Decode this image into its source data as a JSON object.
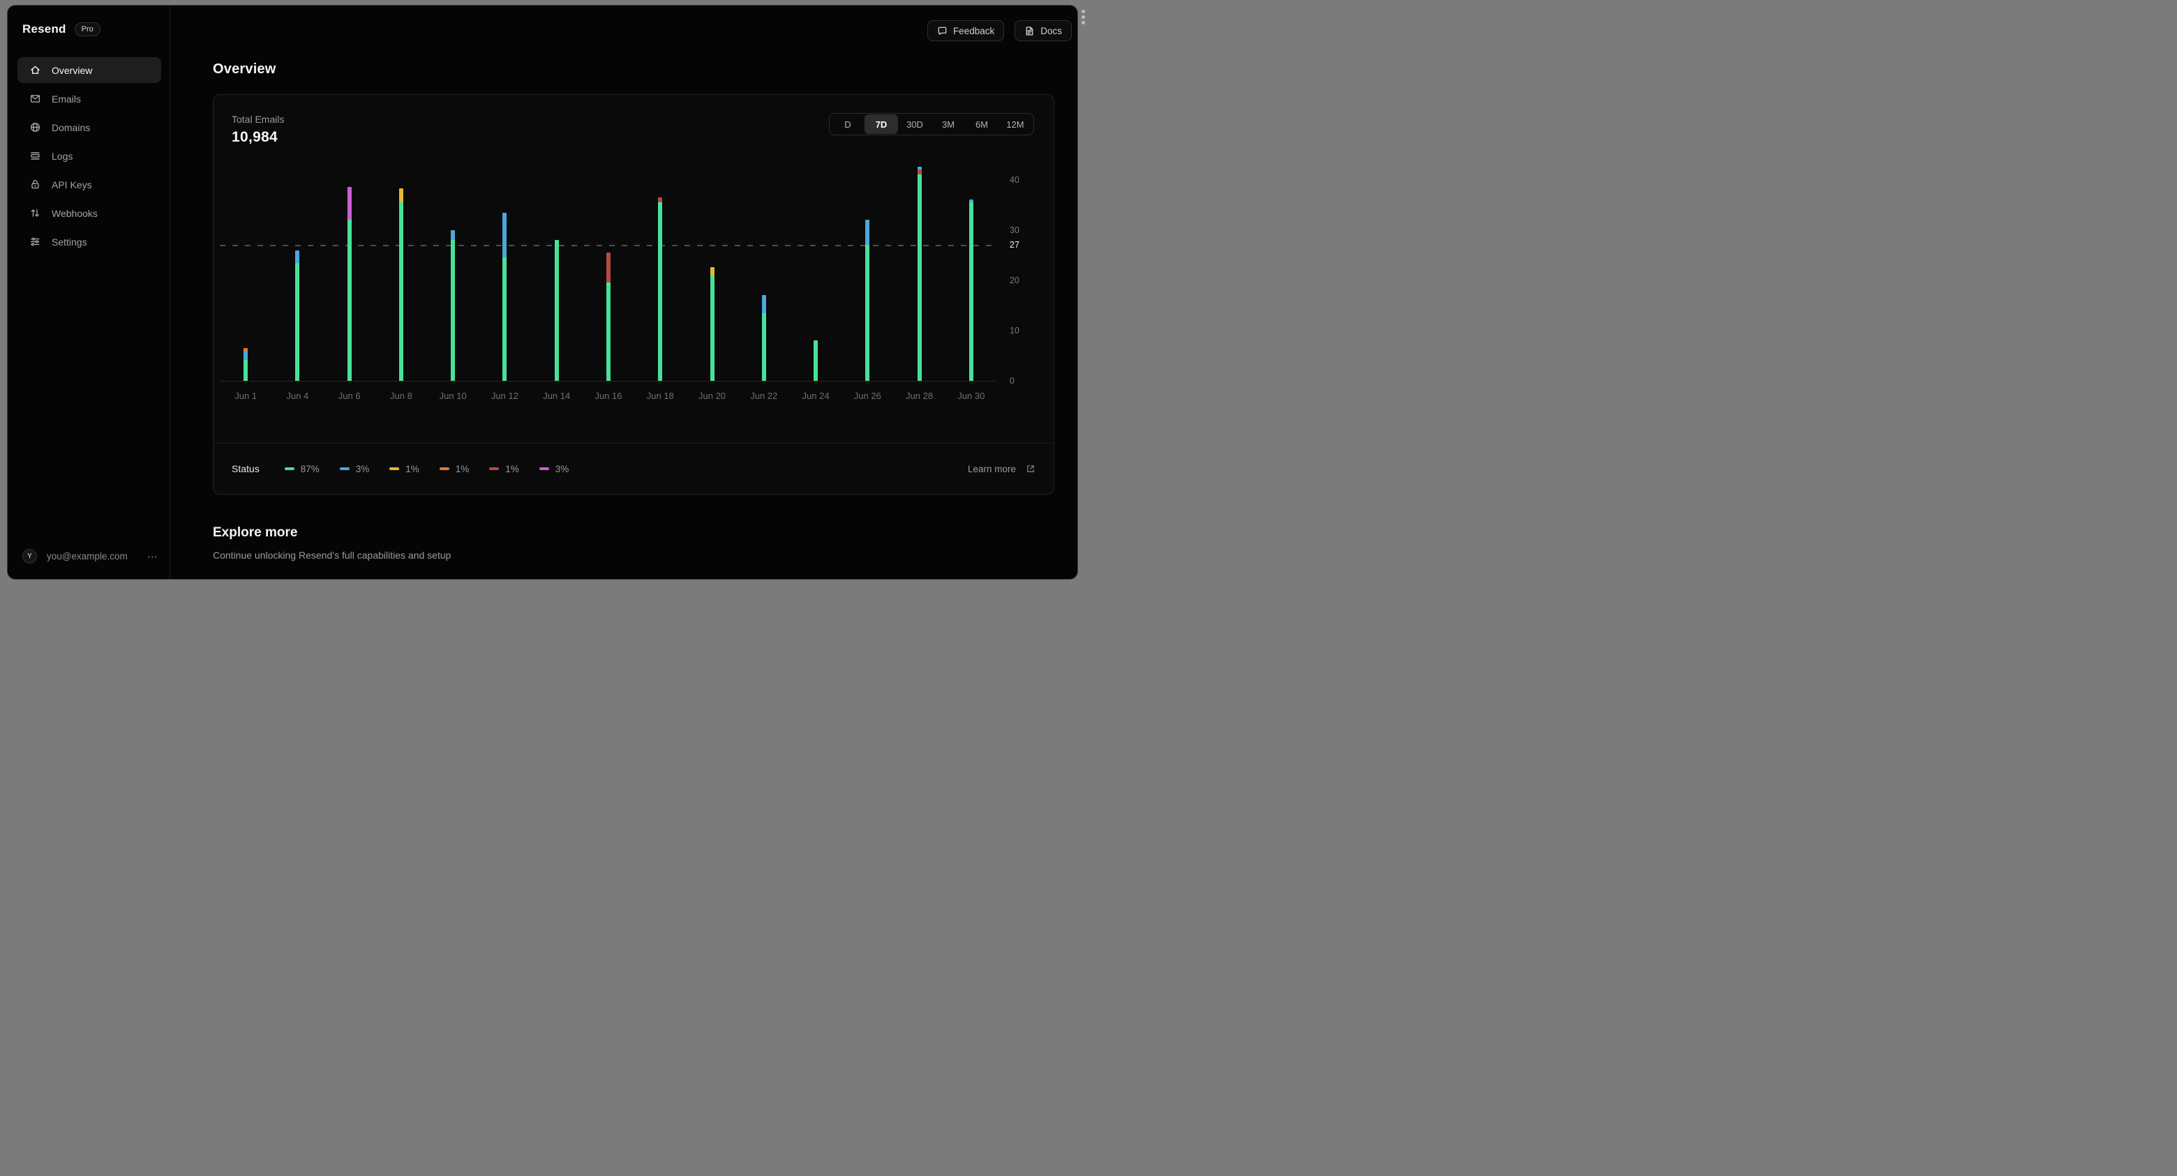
{
  "sidebar": {
    "logo": "Resend",
    "badge": "Pro",
    "items": [
      {
        "label": "Overview",
        "icon": "home-icon",
        "active": true
      },
      {
        "label": "Emails",
        "icon": "mail-icon",
        "active": false
      },
      {
        "label": "Domains",
        "icon": "globe-icon",
        "active": false
      },
      {
        "label": "Logs",
        "icon": "logs-icon",
        "active": false
      },
      {
        "label": "API Keys",
        "icon": "lock-icon",
        "active": false
      },
      {
        "label": "Webhooks",
        "icon": "arrows-up-down-icon",
        "active": false
      },
      {
        "label": "Settings",
        "icon": "sliders-icon",
        "active": false
      }
    ],
    "user": {
      "initial": "Y",
      "email": "you@example.com",
      "menu": "⋯"
    }
  },
  "topbar": {
    "feedback_label": "Feedback",
    "docs_label": "Docs"
  },
  "page": {
    "title": "Overview"
  },
  "card": {
    "metric_label": "Total Emails",
    "metric_value": "10,984",
    "ranges": [
      "D",
      "7D",
      "30D",
      "3M",
      "6M",
      "12M"
    ],
    "active_range": "7D",
    "legend_title": "Status",
    "learn_more_label": "Learn more"
  },
  "chart_data": {
    "type": "stacked-bar",
    "title": "Total Emails",
    "x_labels": [
      "Jun 1",
      "Jun 4",
      "Jun 6",
      "Jun 8",
      "Jun 10",
      "Jun 12",
      "Jun 14",
      "Jun 16",
      "Jun 18",
      "Jun 20",
      "Jun 22",
      "Jun 24",
      "Jun 26",
      "Jun 28",
      "Jun 30"
    ],
    "ylim": [
      0,
      43
    ],
    "yticks": [
      0,
      10,
      20,
      30,
      40
    ],
    "ref_line_value": 27,
    "grid": "off",
    "legend_position": "bottom",
    "colors": {
      "green": "#47e299",
      "blue": "#4aa9d9",
      "yellow": "#e2ba2f",
      "orange": "#e0793a",
      "red": "#b44a41",
      "magenta": "#cb5ed6"
    },
    "legend": [
      {
        "key": "green",
        "pct": "87%"
      },
      {
        "key": "blue",
        "pct": "3%"
      },
      {
        "key": "yellow",
        "pct": "1%"
      },
      {
        "key": "orange",
        "pct": "1%"
      },
      {
        "key": "red",
        "pct": "1%"
      },
      {
        "key": "magenta",
        "pct": "3%"
      }
    ],
    "bars": [
      {
        "label": "Jun 1",
        "segments": [
          [
            "green",
            4.2
          ],
          [
            "blue",
            1.6
          ],
          [
            "orange",
            0.7
          ]
        ]
      },
      {
        "label": "Jun 4",
        "segments": [
          [
            "green",
            23.5
          ],
          [
            "blue",
            2.5
          ]
        ]
      },
      {
        "label": "Jun 6",
        "segments": [
          [
            "green",
            32
          ],
          [
            "magenta",
            6.5
          ]
        ]
      },
      {
        "label": "Jun 8",
        "segments": [
          [
            "green",
            35.5
          ],
          [
            "yellow",
            2.8
          ]
        ]
      },
      {
        "label": "Jun 10",
        "segments": [
          [
            "green",
            28
          ],
          [
            "blue",
            2
          ]
        ]
      },
      {
        "label": "Jun 12",
        "segments": [
          [
            "green",
            24.5
          ],
          [
            "blue",
            9
          ]
        ]
      },
      {
        "label": "Jun 14",
        "segments": [
          [
            "green",
            28
          ]
        ]
      },
      {
        "label": "Jun 16",
        "segments": [
          [
            "green",
            19.5
          ],
          [
            "red",
            6
          ]
        ]
      },
      {
        "label": "Jun 18",
        "segments": [
          [
            "green",
            35.5
          ],
          [
            "red",
            1
          ]
        ]
      },
      {
        "label": "Jun 20",
        "segments": [
          [
            "green",
            21
          ],
          [
            "yellow",
            1.6
          ]
        ]
      },
      {
        "label": "Jun 22",
        "segments": [
          [
            "green",
            13.5
          ],
          [
            "blue",
            3.5
          ]
        ]
      },
      {
        "label": "Jun 24",
        "segments": [
          [
            "green",
            8
          ]
        ]
      },
      {
        "label": "Jun 26",
        "segments": [
          [
            "green",
            27
          ],
          [
            "blue",
            5
          ]
        ]
      },
      {
        "label": "Jun 28",
        "segments": [
          [
            "green",
            41
          ],
          [
            "red",
            1
          ],
          [
            "blue",
            0.6
          ]
        ]
      },
      {
        "label": "Jun 30",
        "segments": [
          [
            "green",
            35.5
          ],
          [
            "blue",
            0.6
          ]
        ]
      }
    ]
  },
  "explore": {
    "title": "Explore more",
    "subtitle": "Continue unlocking Resend’s full capabilities and setup"
  }
}
